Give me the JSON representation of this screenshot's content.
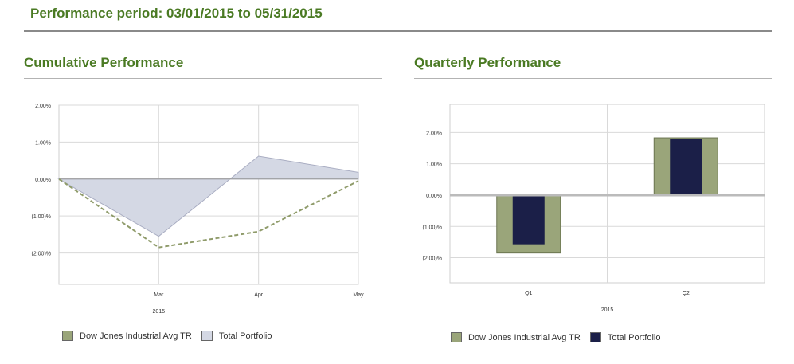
{
  "header": {
    "title": "Performance period: 03/01/2015  to 05/31/2015"
  },
  "colors": {
    "accent_green": "#4a7a23",
    "djia_line": "#8f9b6a",
    "djia_fill": "#9aa57a",
    "portfolio_area": "#d4d8e4",
    "portfolio_bar": "#1b1f48"
  },
  "chart_data": [
    {
      "type": "area",
      "title": "Cumulative Performance",
      "x": [
        "",
        "Mar",
        "Apr",
        "May"
      ],
      "xlabel": "2015",
      "ylim": [
        -2.85,
        2.0
      ],
      "yticks": [
        2.0,
        1.0,
        0.0,
        -1.0,
        -2.0
      ],
      "ytick_labels": [
        "2.00%",
        "1.00%",
        "0.00%",
        "(1.00)%",
        "(2.00)%"
      ],
      "series": [
        {
          "name": "Dow Jones Industrial Avg TR",
          "style": "dashed-line",
          "values": [
            0.0,
            -1.85,
            -1.42,
            -0.05
          ]
        },
        {
          "name": "Total Portfolio",
          "style": "filled-area",
          "values": [
            0.0,
            -1.55,
            0.62,
            0.18
          ]
        }
      ],
      "grid": true,
      "legend": "bottom-left"
    },
    {
      "type": "bar",
      "title": "Quarterly Performance",
      "categories": [
        "Q1",
        "Q2"
      ],
      "xlabel": "2015",
      "ylim": [
        -2.8,
        2.9
      ],
      "yticks": [
        2.0,
        1.0,
        0.0,
        -1.0,
        -2.0
      ],
      "ytick_labels": [
        "2.00%",
        "1.00%",
        "0.00%",
        "(1.00)%",
        "(2.00)%"
      ],
      "series": [
        {
          "name": "Dow Jones Industrial Avg TR",
          "values": [
            -1.85,
            1.83
          ]
        },
        {
          "name": "Total Portfolio",
          "values": [
            -1.57,
            1.79
          ]
        }
      ],
      "grid": true,
      "legend": "bottom-left"
    }
  ]
}
